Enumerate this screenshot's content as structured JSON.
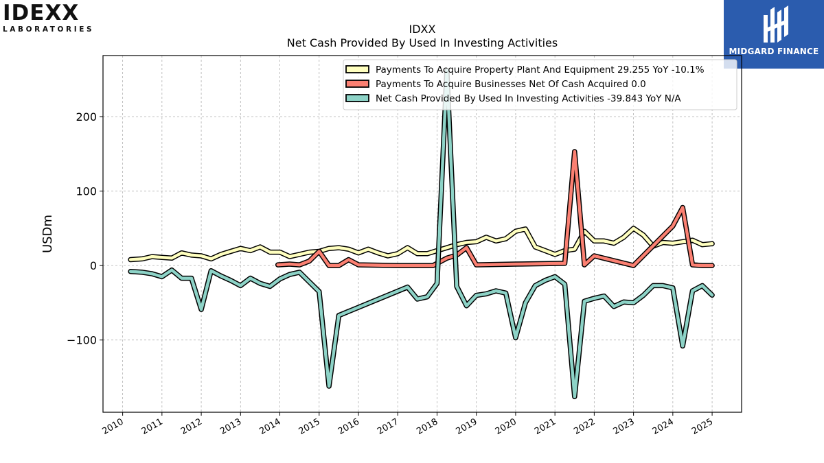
{
  "logos": {
    "left_word": "IDEXX",
    "left_sub": "LABORATORIES",
    "right_text": "MIDGARD FINANCE",
    "right_bg_color": "#2b5cae"
  },
  "chart_data": {
    "type": "line",
    "title": "IDXX",
    "subtitle": "Net Cash Provided By Used In Investing Activities",
    "ylabel": "USDm",
    "xlabel": "",
    "xlim": [
      2009.5,
      2025.75
    ],
    "ylim": [
      -197,
      282
    ],
    "yticks": [
      -100,
      0,
      100,
      200
    ],
    "ytick_labels": [
      "−100",
      "0",
      "100",
      "200"
    ],
    "xticks": [
      2010,
      2011,
      2012,
      2013,
      2014,
      2015,
      2016,
      2017,
      2018,
      2019,
      2020,
      2021,
      2022,
      2023,
      2024,
      2025
    ],
    "xtick_labels": [
      "2010",
      "2011",
      "2012",
      "2013",
      "2014",
      "2015",
      "2016",
      "2017",
      "2018",
      "2019",
      "2020",
      "2021",
      "2022",
      "2023",
      "2024",
      "2025"
    ],
    "grid": true,
    "legend_position": "top-right",
    "series": [
      {
        "name": "Payments To Acquire Property Plant And Equipment  29.255 YoY -10.1%",
        "color": "#ffffbf",
        "points": [
          [
            2010.2,
            8
          ],
          [
            2010.5,
            9
          ],
          [
            2010.75,
            12
          ],
          [
            2011.0,
            11
          ],
          [
            2011.25,
            10
          ],
          [
            2011.5,
            17
          ],
          [
            2011.75,
            14
          ],
          [
            2012.0,
            13
          ],
          [
            2012.25,
            9
          ],
          [
            2012.5,
            15
          ],
          [
            2012.75,
            19
          ],
          [
            2013.0,
            23
          ],
          [
            2013.25,
            20
          ],
          [
            2013.5,
            25
          ],
          [
            2013.75,
            18
          ],
          [
            2014.0,
            18
          ],
          [
            2014.25,
            12
          ],
          [
            2014.5,
            15
          ],
          [
            2014.75,
            18
          ],
          [
            2015.0,
            19
          ],
          [
            2015.25,
            23
          ],
          [
            2015.5,
            24
          ],
          [
            2015.75,
            22
          ],
          [
            2016.0,
            17
          ],
          [
            2016.25,
            22
          ],
          [
            2016.5,
            17
          ],
          [
            2016.75,
            13
          ],
          [
            2017.0,
            16
          ],
          [
            2017.25,
            24
          ],
          [
            2017.5,
            16
          ],
          [
            2017.75,
            16
          ],
          [
            2018.0,
            20
          ],
          [
            2018.25,
            24
          ],
          [
            2018.5,
            28
          ],
          [
            2018.75,
            31
          ],
          [
            2019.0,
            32
          ],
          [
            2019.25,
            38
          ],
          [
            2019.5,
            33
          ],
          [
            2019.75,
            36
          ],
          [
            2020.0,
            46
          ],
          [
            2020.25,
            49
          ],
          [
            2020.5,
            25
          ],
          [
            2020.75,
            20
          ],
          [
            2021.0,
            15
          ],
          [
            2021.25,
            20
          ],
          [
            2021.5,
            22
          ],
          [
            2021.75,
            46
          ],
          [
            2022.0,
            33
          ],
          [
            2022.25,
            33
          ],
          [
            2022.5,
            30
          ],
          [
            2022.75,
            38
          ],
          [
            2023.0,
            50
          ],
          [
            2023.25,
            41
          ],
          [
            2023.5,
            26
          ],
          [
            2023.75,
            31
          ],
          [
            2024.0,
            30
          ],
          [
            2024.25,
            32
          ],
          [
            2024.5,
            34
          ],
          [
            2024.75,
            28
          ],
          [
            2025.0,
            29.3
          ]
        ]
      },
      {
        "name": "Payments To Acquire Businesses Net Of Cash Acquired  0.0",
        "color": "#fb8072",
        "points": [
          [
            2013.95,
            1
          ],
          [
            2014.25,
            2
          ],
          [
            2014.5,
            1
          ],
          [
            2014.75,
            6
          ],
          [
            2015.0,
            19
          ],
          [
            2015.25,
            0
          ],
          [
            2015.5,
            0
          ],
          [
            2015.75,
            8
          ],
          [
            2016.0,
            1
          ],
          [
            2017.0,
            0
          ],
          [
            2017.9,
            0
          ],
          [
            2018.25,
            10
          ],
          [
            2018.5,
            14
          ],
          [
            2018.75,
            24
          ],
          [
            2019.0,
            1
          ],
          [
            2020.0,
            2
          ],
          [
            2021.25,
            3
          ],
          [
            2021.5,
            153
          ],
          [
            2021.75,
            1
          ],
          [
            2022.0,
            13
          ],
          [
            2023.0,
            0
          ],
          [
            2024.0,
            53
          ],
          [
            2024.25,
            78
          ],
          [
            2024.5,
            1
          ],
          [
            2024.75,
            0
          ],
          [
            2025.0,
            0.0
          ]
        ]
      },
      {
        "name": "Net Cash Provided By Used In Investing Activities  -39.843 YoY N/A",
        "color": "#8dd3c7",
        "points": [
          [
            2010.2,
            -8
          ],
          [
            2010.5,
            -9
          ],
          [
            2010.75,
            -11
          ],
          [
            2011.0,
            -15
          ],
          [
            2011.25,
            -6
          ],
          [
            2011.5,
            -17
          ],
          [
            2011.75,
            -17
          ],
          [
            2012.0,
            -59
          ],
          [
            2012.25,
            -7
          ],
          [
            2012.5,
            -14
          ],
          [
            2012.75,
            -20
          ],
          [
            2013.0,
            -27
          ],
          [
            2013.25,
            -17
          ],
          [
            2013.5,
            -24
          ],
          [
            2013.75,
            -28
          ],
          [
            2014.0,
            -18
          ],
          [
            2014.25,
            -12
          ],
          [
            2014.5,
            -9
          ],
          [
            2014.75,
            -22
          ],
          [
            2015.0,
            -35
          ],
          [
            2015.25,
            -162
          ],
          [
            2015.5,
            -67
          ],
          [
            2017.25,
            -29
          ],
          [
            2017.5,
            -45
          ],
          [
            2017.75,
            -42
          ],
          [
            2018.0,
            -24
          ],
          [
            2018.25,
            262
          ],
          [
            2018.5,
            -28
          ],
          [
            2018.75,
            -54
          ],
          [
            2019.0,
            -40
          ],
          [
            2019.25,
            -38
          ],
          [
            2019.5,
            -34
          ],
          [
            2019.75,
            -37
          ],
          [
            2020.0,
            -97
          ],
          [
            2020.25,
            -50
          ],
          [
            2020.5,
            -27
          ],
          [
            2020.75,
            -20
          ],
          [
            2021.0,
            -15
          ],
          [
            2021.25,
            -25
          ],
          [
            2021.5,
            -176
          ],
          [
            2021.75,
            -48
          ],
          [
            2022.0,
            -44
          ],
          [
            2022.25,
            -41
          ],
          [
            2022.5,
            -55
          ],
          [
            2022.75,
            -49
          ],
          [
            2023.0,
            -50
          ],
          [
            2023.25,
            -40
          ],
          [
            2023.5,
            -27
          ],
          [
            2023.75,
            -27
          ],
          [
            2024.0,
            -30
          ],
          [
            2024.25,
            -108
          ],
          [
            2024.5,
            -34
          ],
          [
            2024.75,
            -27
          ],
          [
            2025.0,
            -39.8
          ]
        ]
      }
    ]
  }
}
